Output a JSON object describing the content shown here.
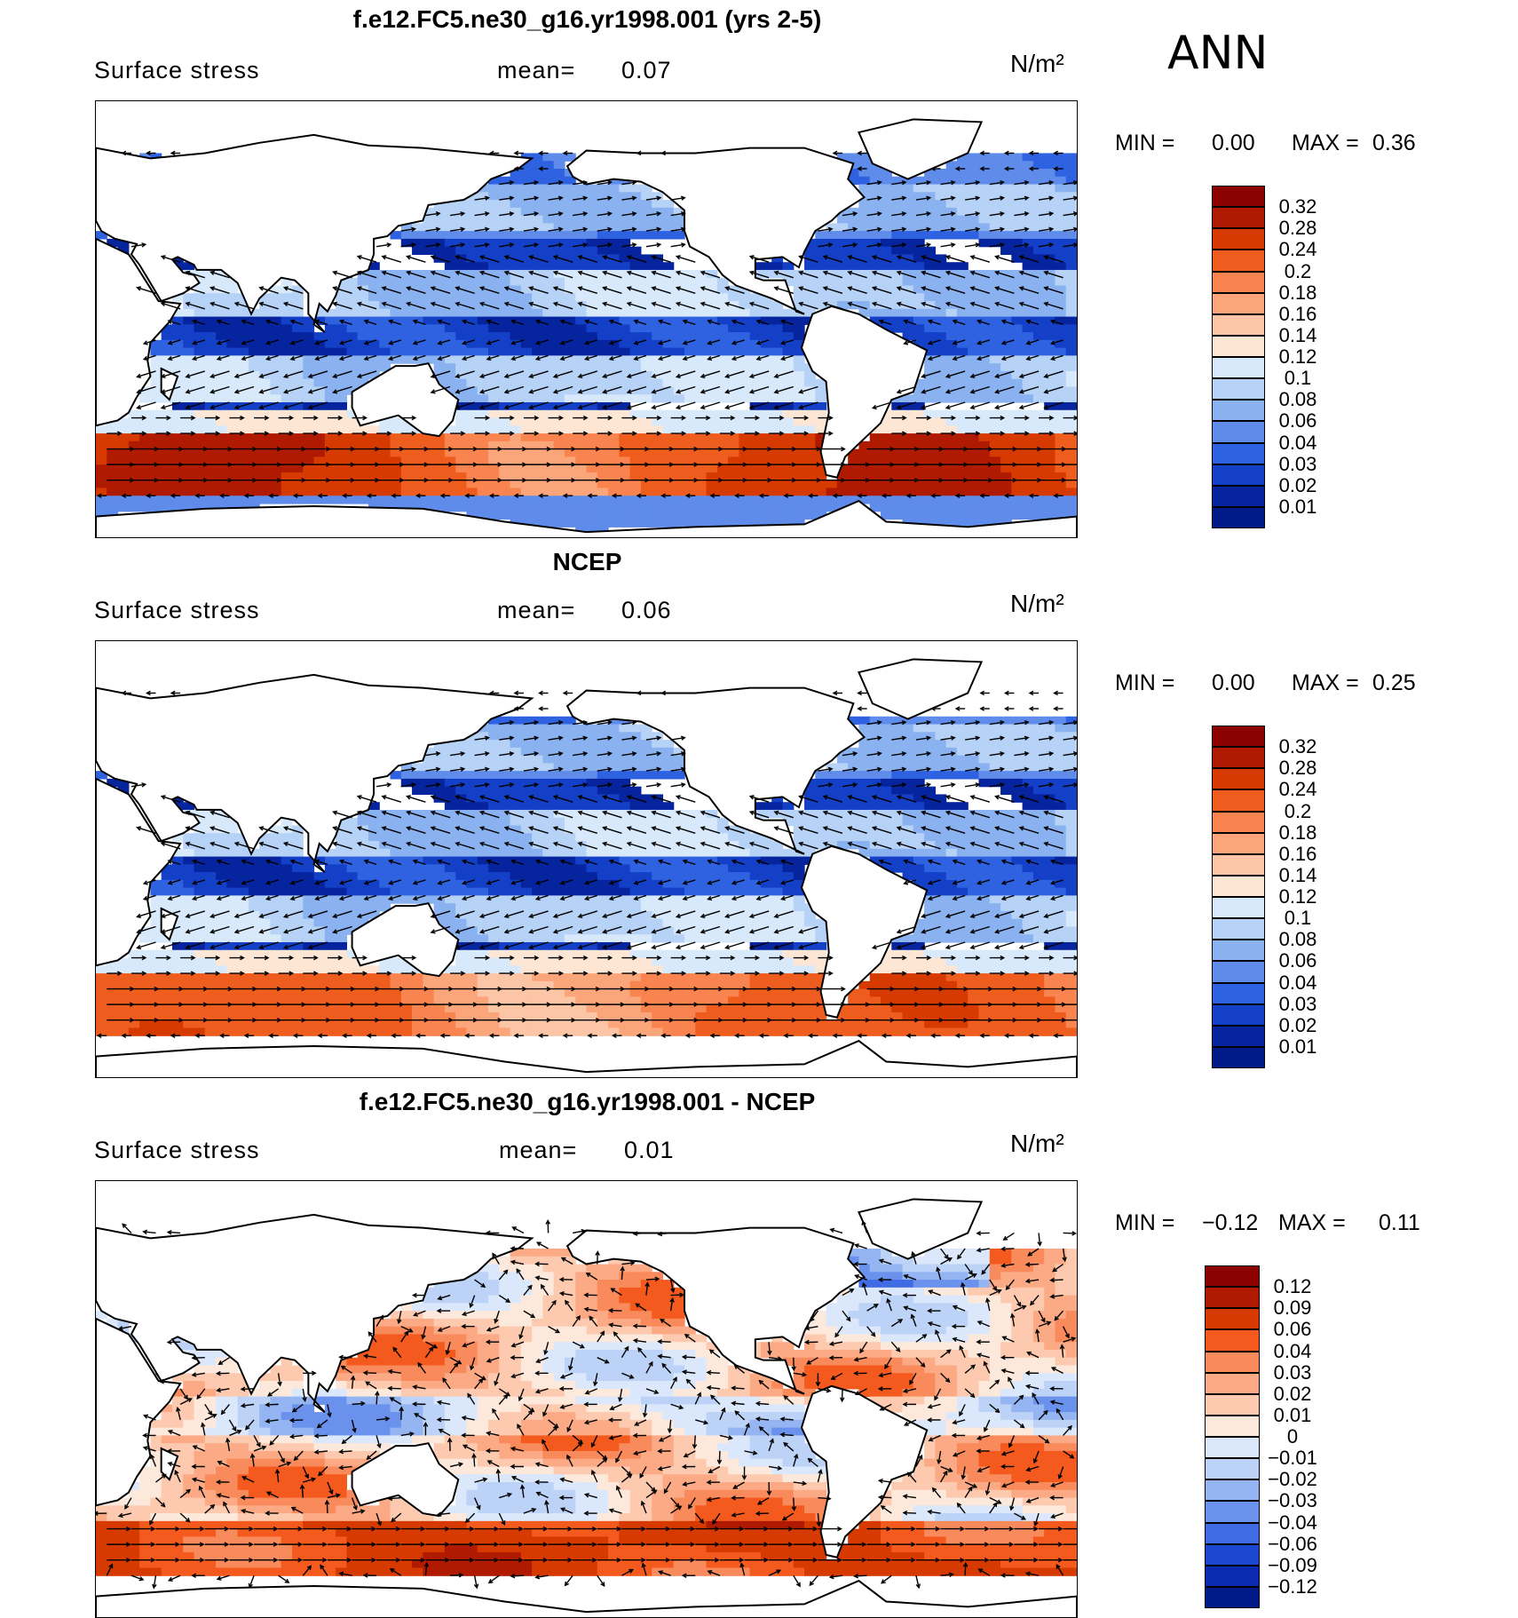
{
  "season": "ANN",
  "units": "N/m²",
  "panels": [
    {
      "title": "f.e12.FC5.ne30_g16.yr1998.001 (yrs 2-5)",
      "variable": "Surface stress",
      "mean_label": "mean=",
      "mean_value": "0.07",
      "min_label": "MIN =",
      "min_value": "0.00",
      "max_label": "MAX =",
      "max_value": "0.36",
      "levels": [
        "0.32",
        "0.28",
        "0.24",
        "0.2",
        "0.18",
        "0.16",
        "0.14",
        "0.12",
        "0.1",
        "0.08",
        "0.06",
        "0.04",
        "0.03",
        "0.02",
        "0.01"
      ],
      "colors": [
        "#8b0000",
        "#b01a00",
        "#d63a00",
        "#ee5d1e",
        "#f9844f",
        "#fba57a",
        "#fcc5a5",
        "#fde6d4",
        "#d7e9fb",
        "#b6d2f6",
        "#8bb2f0",
        "#5f8cea",
        "#2f62e0",
        "#1440c8",
        "#07249f",
        "#001a8a"
      ]
    },
    {
      "title": "NCEP",
      "variable": "Surface stress",
      "mean_label": "mean=",
      "mean_value": "0.06",
      "min_label": "MIN =",
      "min_value": "0.00",
      "max_label": "MAX =",
      "max_value": "0.25",
      "levels": [
        "0.32",
        "0.28",
        "0.24",
        "0.2",
        "0.18",
        "0.16",
        "0.14",
        "0.12",
        "0.1",
        "0.08",
        "0.06",
        "0.04",
        "0.03",
        "0.02",
        "0.01"
      ],
      "colors": [
        "#8b0000",
        "#b01a00",
        "#d63a00",
        "#ee5d1e",
        "#f9844f",
        "#fba57a",
        "#fcc5a5",
        "#fde6d4",
        "#d7e9fb",
        "#b6d2f6",
        "#8bb2f0",
        "#5f8cea",
        "#2f62e0",
        "#1440c8",
        "#07249f",
        "#001a8a"
      ]
    },
    {
      "title": "f.e12.FC5.ne30_g16.yr1998.001 - NCEP",
      "variable": "Surface stress",
      "mean_label": "mean=",
      "mean_value": "0.01",
      "min_label": "MIN =",
      "min_value": "−0.12",
      "max_label": "MAX =",
      "max_value": "0.11",
      "levels": [
        "0.12",
        "0.09",
        "0.06",
        "0.04",
        "0.03",
        "0.02",
        "0.01",
        "0",
        "−0.01",
        "−0.02",
        "−0.03",
        "−0.04",
        "−0.06",
        "−0.09",
        "−0.12"
      ],
      "colors": [
        "#8b0000",
        "#b01a00",
        "#d63a00",
        "#f45a1e",
        "#f98a5c",
        "#fbaa85",
        "#fdcab0",
        "#fde9dc",
        "#dbe8fb",
        "#bcd2f7",
        "#94b5f2",
        "#6a92ec",
        "#3f6be4",
        "#1c47d0",
        "#0a2ab0",
        "#001a8a"
      ]
    }
  ]
}
